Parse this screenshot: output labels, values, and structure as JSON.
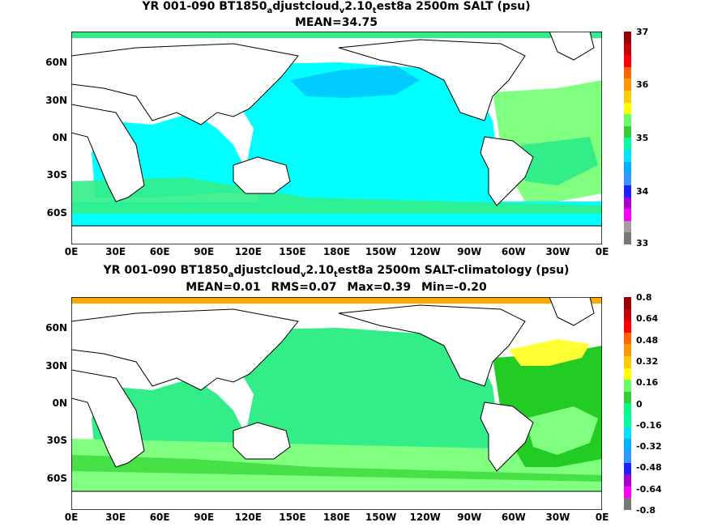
{
  "top": {
    "title_prefix": "YR 001-090 BT1850",
    "sub_a": "a",
    "mid1": "djustcloud",
    "sub_v": "v",
    "mid2": "2.10",
    "sub_t": "t",
    "title_suffix": "est8a 2500m SALT (psu)",
    "mean": "MEAN=34.75",
    "cbar_labels": [
      "37",
      "36",
      "35",
      "34",
      "33"
    ],
    "cbar_colors": [
      "#777777",
      "#a0a0a0",
      "#ff00ff",
      "#aa00cc",
      "#2020ff",
      "#3399ff",
      "#00b0ff",
      "#00e0ff",
      "#00ffa0",
      "#33cc33",
      "#66ff66",
      "#ffff00",
      "#ffcc00",
      "#ff9900",
      "#ff6600",
      "#ff0000",
      "#cc0000",
      "#990000"
    ]
  },
  "bottom": {
    "title_prefix": "YR 001-090 BT1850",
    "sub_a": "a",
    "mid1": "djustcloud",
    "sub_v": "v",
    "mid2": "2.10",
    "sub_t": "t",
    "title_suffix": "est8a 2500m SALT-climatology (psu)",
    "mean": "MEAN=0.01",
    "rms": "RMS=0.07",
    "max": "Max=0.39",
    "min": "Min=-0.20",
    "cbar_labels": [
      "0.8",
      "0.64",
      "0.48",
      "0.32",
      "0.16",
      "0",
      "-0.16",
      "-0.32",
      "-0.48",
      "-0.64",
      "-0.8"
    ],
    "cbar_colors": [
      "#777777",
      "#ff00ff",
      "#aa00cc",
      "#2020ff",
      "#3399ff",
      "#00b0ff",
      "#00e0ff",
      "#00ffa0",
      "#00ff80",
      "#33cc33",
      "#66ff66",
      "#ffff00",
      "#ffcc00",
      "#ff9900",
      "#ff6600",
      "#ff0000",
      "#cc0000",
      "#990000"
    ]
  },
  "axes": {
    "lat_labels": [
      "60N",
      "30N",
      "0N",
      "30S",
      "60S"
    ],
    "lon_labels": [
      "0E",
      "30E",
      "60E",
      "90E",
      "120E",
      "150E",
      "180E",
      "150W",
      "120W",
      "90W",
      "60W",
      "30W",
      "0E"
    ]
  },
  "colors": {
    "land": "#ffffff",
    "coast": "#000000",
    "top_ocean_main": "#00ffff",
    "top_ocean_dark": "#00ccff",
    "top_atlantic": "#80ff80",
    "top_green": "#33ee88",
    "bot_ocean_main": "#33ee88",
    "bot_ocean_light": "#80ff80",
    "bot_yellow": "#ffff33",
    "bot_green": "#22cc22",
    "bot_orange": "#ffaa00",
    "bot_cyan": "#00ffff"
  }
}
